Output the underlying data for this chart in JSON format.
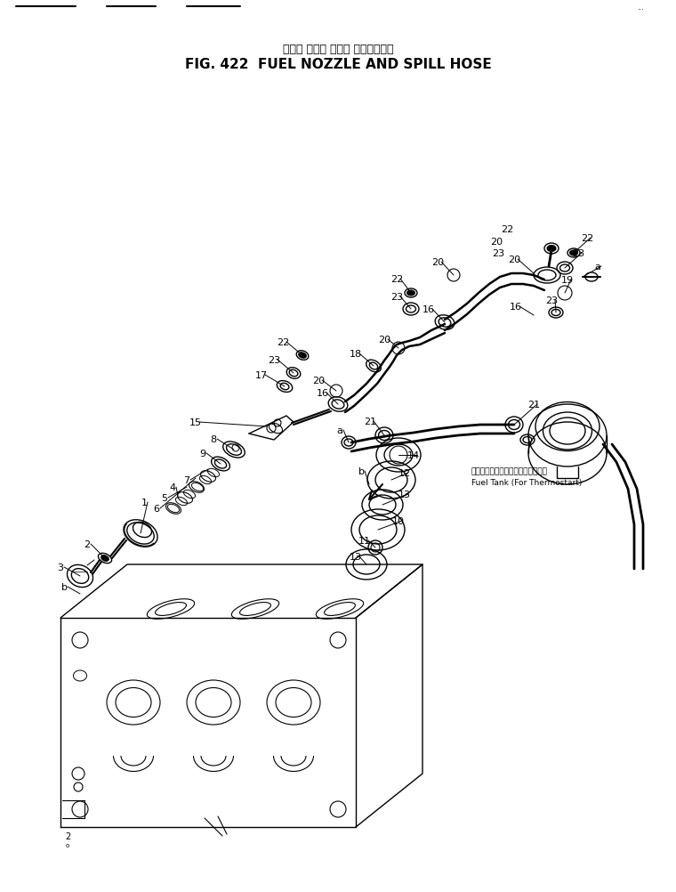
{
  "title_jp": "フェル ノズル および スピルホース",
  "title_en": "FIG. 422  FUEL NOZZLE AND SPILL HOSE",
  "background_color": "#ffffff",
  "line_color": "#000000",
  "title_fontsize_jp": 9,
  "title_fontsize_en": 11,
  "fig_width": 7.6,
  "fig_height": 10.03,
  "fuel_tank_label_jp": "フェルタンク（サーモスタート用）",
  "fuel_tank_label_en": "Fuel Tank (For Thermostart)"
}
